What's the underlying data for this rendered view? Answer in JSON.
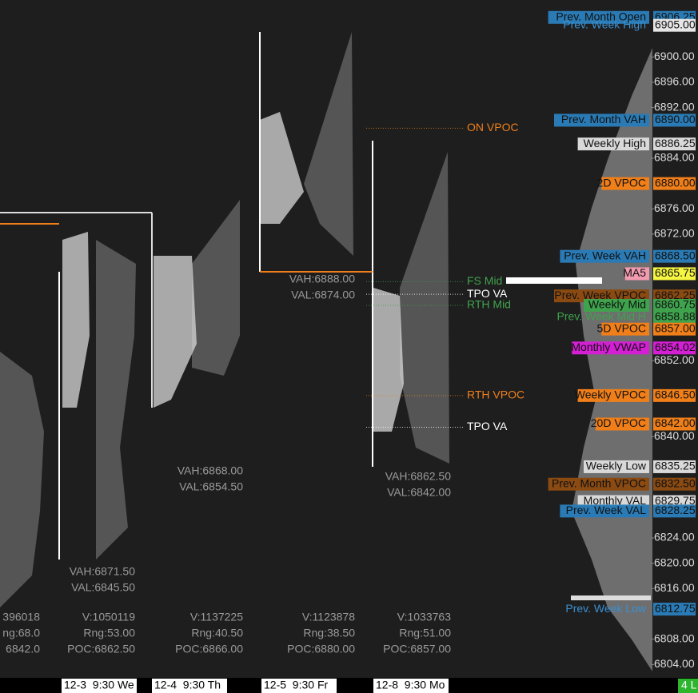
{
  "chart_data": {
    "type": "profile",
    "ylim": [
      6799.5,
      6909
    ],
    "yticks": [
      {
        "value": 6900,
        "label": "6900.00"
      },
      {
        "value": 6896,
        "label": "6896.00"
      },
      {
        "value": 6892,
        "label": "6892.00"
      },
      {
        "value": 6884,
        "label": "6884.00"
      },
      {
        "value": 6876,
        "label": "6876.00"
      },
      {
        "value": 6872,
        "label": "6872.00"
      },
      {
        "value": 6852,
        "label": "6852.00"
      },
      {
        "value": 6840,
        "label": "6840.00"
      },
      {
        "value": 6824,
        "label": "6824.00"
      },
      {
        "value": 6820,
        "label": "6820.00"
      },
      {
        "value": 6816,
        "label": "6816.00"
      },
      {
        "value": 6808,
        "label": "6808.00"
      },
      {
        "value": 6804,
        "label": "6804.00"
      }
    ],
    "levels": [
      {
        "name": "Prev. Month Open",
        "value": 6906.25,
        "label": "6906.25",
        "color": "#2a7bb5",
        "name_color": "#2a7bb5",
        "boxed": true
      },
      {
        "name": "Prev. Week High",
        "value": 6905,
        "label": "6905.00",
        "color": "#e6e6e6",
        "name_color": "#3b8fd0",
        "boxed": false
      },
      {
        "name": "Prev. Month VAH",
        "value": 6890,
        "label": "6890.00",
        "color": "#2a7bb5",
        "name_color": "#2a7bb5",
        "boxed": true
      },
      {
        "name": "Weekly High",
        "value": 6886.25,
        "label": "6886.25",
        "color": "#d9d9d9",
        "name_color": "#d9d9d9",
        "boxed": true
      },
      {
        "name": "2D VPOC",
        "value": 6880,
        "label": "6880.00",
        "color": "#f07f1a",
        "name_color": "#f07f1a",
        "boxed": true
      },
      {
        "name": "Prev. Week VAH",
        "value": 6868.5,
        "label": "6868.50",
        "color": "#2a7bb5",
        "name_color": "#2a7bb5",
        "boxed": true
      },
      {
        "name": "MA5",
        "value": 6865.75,
        "label": "6865.75",
        "color": "#f5f542",
        "name_color": "#f29ab0",
        "boxed": true
      },
      {
        "name": "Prev. Week VPOC",
        "value": 6862.25,
        "label": "6862.25",
        "color": "#8a4a12",
        "name_color": "#8a4a12",
        "boxed": true
      },
      {
        "name": "Weekly Mid",
        "value": 6860.75,
        "label": "6860.75",
        "color": "#3fa34d",
        "name_color": "#3fa34d",
        "boxed": true
      },
      {
        "name": "Prev. Week Mid H",
        "value": 6858.88,
        "label": "6858.88",
        "color": "#3fa34d",
        "name_color": "#3fa34d",
        "boxed": false
      },
      {
        "name": "5D VPOC",
        "value": 6857,
        "label": "6857.00",
        "color": "#f07f1a",
        "name_color": "#f07f1a",
        "boxed": true
      },
      {
        "name": "Monthly VWAP",
        "value": 6854.02,
        "label": "6854.02",
        "color": "#d41fd4",
        "name_color": "#d41fd4",
        "boxed": true
      },
      {
        "name": "Weekly VPOC",
        "value": 6846.5,
        "label": "6846.50",
        "color": "#f07f1a",
        "name_color": "#f07f1a",
        "boxed": true
      },
      {
        "name": "20D VPOC",
        "value": 6842,
        "label": "6842.00",
        "color": "#f07f1a",
        "name_color": "#f07f1a",
        "boxed": true
      },
      {
        "name": "Weekly Low",
        "value": 6835.25,
        "label": "6835.25",
        "color": "#d9d9d9",
        "name_color": "#d9d9d9",
        "boxed": true
      },
      {
        "name": "Prev. Month VPOC",
        "value": 6832.5,
        "label": "6832.50",
        "color": "#8a4a12",
        "name_color": "#8a4a12",
        "boxed": true
      },
      {
        "name": "Monthly VAL",
        "value": 6829.75,
        "label": "6829.75",
        "color": "#d9d9d9",
        "name_color": "#d9d9d9",
        "boxed": true
      },
      {
        "name": "Prev. Week VAL",
        "value": 6828.25,
        "label": "6828.25",
        "color": "#2a7bb5",
        "name_color": "#2a7bb5",
        "boxed": true
      },
      {
        "name": "Prev. Week Low",
        "value": 6812.75,
        "label": "6812.75",
        "color": "#2a7bb5",
        "name_color": "#3b8fd0",
        "boxed": false
      }
    ],
    "annotations": [
      {
        "text": "ON VPOC",
        "value": 6888.75,
        "color": "#f07f1a"
      },
      {
        "text": "FS Mid",
        "value": 6864.5,
        "color": "#3fa34d"
      },
      {
        "text": "TPO VA",
        "value": 6862.5,
        "color": "#ffffff"
      },
      {
        "text": "RTH Mid",
        "value": 6860.75,
        "color": "#3fa34d"
      },
      {
        "text": "RTH VPOC",
        "value": 6846.5,
        "color": "#f07f1a"
      },
      {
        "text": "TPO VA",
        "value": 6841.5,
        "color": "#ffffff"
      }
    ],
    "sessions": [
      {
        "date": "12-3  9:30 We",
        "vah": "VAH:6871.50",
        "val": "VAL:6845.50",
        "volume": "V:1050119",
        "range": "Rng:53.00",
        "poc": "POC:6862.50"
      },
      {
        "date": "12-4  9:30 Th",
        "vah": "VAH:6868.00",
        "val": "VAL:6854.50",
        "volume": "V:1137225",
        "range": "Rng:40.50",
        "poc": "POC:6866.00"
      },
      {
        "date": "12-5  9:30 Fr",
        "vah": "VAH:6888.00",
        "val": "VAL:6874.00",
        "volume": "V:1123878",
        "range": "Rng:38.50",
        "poc": "POC:6880.00"
      },
      {
        "date": "12-8  9:30 Mo",
        "vah": "VAH:6862.50",
        "val": "VAL:6842.00",
        "volume": "V:1033763",
        "range": "Rng:51.00",
        "poc": "POC:6857.00"
      }
    ],
    "partial_stats": [
      "396018",
      "ng:68.0",
      "6842.0"
    ],
    "corner": "4 L"
  }
}
